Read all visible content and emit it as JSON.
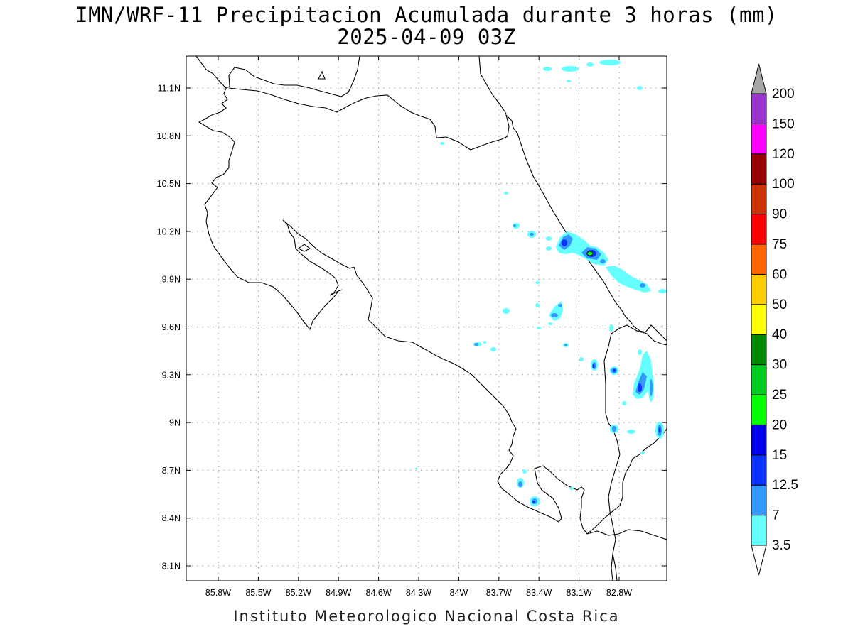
{
  "title": {
    "line1": "IMN/WRF-11 Precipitacion Acumulada durante 3 horas (mm)",
    "line2": "2025-04-09 03Z"
  },
  "footer": "Instituto Meteorologico Nacional Costa Rica",
  "axes": {
    "lon_ticks": [
      "85.8W",
      "85.5W",
      "85.2W",
      "84.9W",
      "84.6W",
      "84.3W",
      "84W",
      "83.7W",
      "83.4W",
      "83.1W",
      "82.8W"
    ],
    "lat_ticks": [
      "11.1N",
      "10.8N",
      "10.5N",
      "10.2N",
      "9.9N",
      "9.6N",
      "9.3N",
      "9N",
      "8.7N",
      "8.4N",
      "8.1N"
    ],
    "grid": true
  },
  "colorbar": {
    "levels": [
      "3.5",
      "7",
      "12.5",
      "15",
      "20",
      "25",
      "30",
      "40",
      "50",
      "60",
      "75",
      "90",
      "100",
      "120",
      "150",
      "200"
    ],
    "colors": [
      "#66ffff",
      "#3399ff",
      "#0a32ff",
      "#0000ee",
      "#00ff00",
      "#00cc22",
      "#008800",
      "#ffff00",
      "#ffcc00",
      "#ff6600",
      "#ff0000",
      "#cc3300",
      "#990000",
      "#ff00ff",
      "#9933cc",
      "#f4f4f4",
      "#a6a6a6"
    ]
  },
  "precip_colors": {
    "light": "#66ffff",
    "medium": "#3399ff",
    "heavy": "#0a32ff",
    "very_heavy": "#00ff00"
  }
}
